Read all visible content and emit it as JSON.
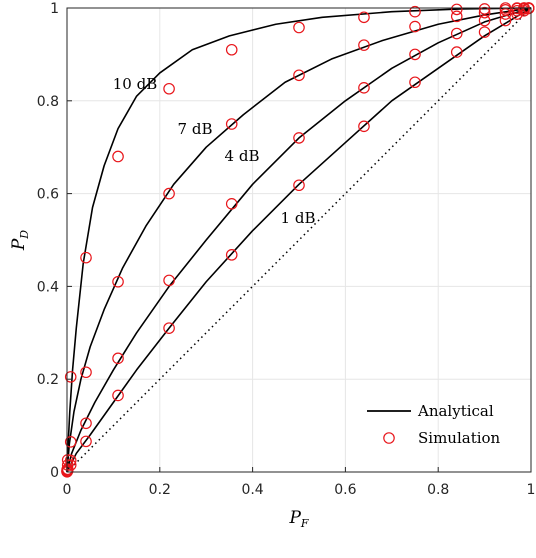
{
  "chart_data": {
    "type": "line",
    "title": "",
    "xlabel": "P",
    "xlabel_sub": "F",
    "ylabel": "P",
    "ylabel_sub": "D",
    "xlim": [
      0,
      1
    ],
    "ylim": [
      0,
      1
    ],
    "xticks": [
      "0",
      "0.2",
      "0.4",
      "0.6",
      "0.8",
      "1"
    ],
    "yticks": [
      "0",
      "0.2",
      "0.4",
      "0.6",
      "0.8",
      "1"
    ],
    "grid": true,
    "legend_position": "bottom-right",
    "legend": [
      "Analytical",
      "Simulation"
    ],
    "colors": {
      "analytical": "#000000",
      "simulation": "#e8161b",
      "reference": "#000000"
    },
    "series": [
      {
        "annotation": "10 dB",
        "analytical": [
          [
            0,
            0
          ],
          [
            0.002,
            0.05
          ],
          [
            0.006,
            0.13
          ],
          [
            0.012,
            0.22
          ],
          [
            0.02,
            0.31
          ],
          [
            0.035,
            0.45
          ],
          [
            0.055,
            0.57
          ],
          [
            0.08,
            0.66
          ],
          [
            0.11,
            0.74
          ],
          [
            0.15,
            0.81
          ],
          [
            0.2,
            0.86
          ],
          [
            0.27,
            0.91
          ],
          [
            0.35,
            0.94
          ],
          [
            0.45,
            0.965
          ],
          [
            0.55,
            0.98
          ],
          [
            0.7,
            0.992
          ],
          [
            0.85,
            0.998
          ],
          [
            1,
            1
          ]
        ],
        "simulation": [
          [
            0.0002,
            0.005
          ],
          [
            0.0015,
            0.026
          ],
          [
            0.008,
            0.205
          ],
          [
            0.041,
            0.462
          ],
          [
            0.11,
            0.68
          ],
          [
            0.22,
            0.826
          ],
          [
            0.355,
            0.91
          ],
          [
            0.5,
            0.958
          ],
          [
            0.64,
            0.98
          ],
          [
            0.75,
            0.992
          ],
          [
            0.84,
            0.997
          ],
          [
            0.9,
            0.998
          ],
          [
            0.945,
            1
          ],
          [
            0.97,
            1
          ],
          [
            0.985,
            1
          ],
          [
            0.995,
            1
          ]
        ]
      },
      {
        "annotation": "7 dB",
        "analytical": [
          [
            0,
            0
          ],
          [
            0.005,
            0.06
          ],
          [
            0.015,
            0.13
          ],
          [
            0.03,
            0.2
          ],
          [
            0.05,
            0.27
          ],
          [
            0.08,
            0.35
          ],
          [
            0.12,
            0.44
          ],
          [
            0.17,
            0.53
          ],
          [
            0.23,
            0.62
          ],
          [
            0.3,
            0.7
          ],
          [
            0.38,
            0.77
          ],
          [
            0.47,
            0.84
          ],
          [
            0.57,
            0.89
          ],
          [
            0.68,
            0.93
          ],
          [
            0.8,
            0.965
          ],
          [
            0.9,
            0.985
          ],
          [
            1,
            1
          ]
        ],
        "simulation": [
          [
            0.0002,
            0.002
          ],
          [
            0.0015,
            0.015
          ],
          [
            0.008,
            0.065
          ],
          [
            0.041,
            0.215
          ],
          [
            0.11,
            0.41
          ],
          [
            0.22,
            0.6
          ],
          [
            0.355,
            0.75
          ],
          [
            0.5,
            0.855
          ],
          [
            0.64,
            0.92
          ],
          [
            0.75,
            0.96
          ],
          [
            0.84,
            0.982
          ],
          [
            0.9,
            0.99
          ],
          [
            0.945,
            0.996
          ],
          [
            0.97,
            0.999
          ],
          [
            0.985,
            1
          ],
          [
            0.995,
            1
          ]
        ]
      },
      {
        "annotation": "4 dB",
        "analytical": [
          [
            0,
            0
          ],
          [
            0.01,
            0.04
          ],
          [
            0.03,
            0.09
          ],
          [
            0.06,
            0.15
          ],
          [
            0.1,
            0.22
          ],
          [
            0.15,
            0.3
          ],
          [
            0.22,
            0.4
          ],
          [
            0.3,
            0.5
          ],
          [
            0.4,
            0.62
          ],
          [
            0.5,
            0.72
          ],
          [
            0.6,
            0.8
          ],
          [
            0.7,
            0.87
          ],
          [
            0.8,
            0.925
          ],
          [
            0.9,
            0.97
          ],
          [
            1,
            1
          ]
        ],
        "simulation": [
          [
            0.0002,
            0.001
          ],
          [
            0.0015,
            0.006
          ],
          [
            0.008,
            0.025
          ],
          [
            0.041,
            0.105
          ],
          [
            0.11,
            0.245
          ],
          [
            0.22,
            0.413
          ],
          [
            0.355,
            0.578
          ],
          [
            0.5,
            0.72
          ],
          [
            0.64,
            0.828
          ],
          [
            0.75,
            0.9
          ],
          [
            0.84,
            0.945
          ],
          [
            0.9,
            0.973
          ],
          [
            0.945,
            0.987
          ],
          [
            0.97,
            0.994
          ],
          [
            0.985,
            0.998
          ],
          [
            0.995,
            1
          ]
        ]
      },
      {
        "annotation": "1 dB",
        "analytical": [
          [
            0,
            0
          ],
          [
            0.02,
            0.04
          ],
          [
            0.05,
            0.08
          ],
          [
            0.1,
            0.15
          ],
          [
            0.15,
            0.22
          ],
          [
            0.22,
            0.31
          ],
          [
            0.3,
            0.41
          ],
          [
            0.4,
            0.52
          ],
          [
            0.5,
            0.62
          ],
          [
            0.6,
            0.71
          ],
          [
            0.7,
            0.8
          ],
          [
            0.8,
            0.87
          ],
          [
            0.9,
            0.94
          ],
          [
            1,
            1
          ]
        ],
        "simulation": [
          [
            0.0002,
            0.0005
          ],
          [
            0.0015,
            0.003
          ],
          [
            0.008,
            0.015
          ],
          [
            0.041,
            0.066
          ],
          [
            0.11,
            0.165
          ],
          [
            0.22,
            0.31
          ],
          [
            0.355,
            0.468
          ],
          [
            0.5,
            0.618
          ],
          [
            0.64,
            0.745
          ],
          [
            0.75,
            0.84
          ],
          [
            0.84,
            0.905
          ],
          [
            0.9,
            0.948
          ],
          [
            0.945,
            0.973
          ],
          [
            0.97,
            0.987
          ],
          [
            0.985,
            0.994
          ],
          [
            0.995,
            0.999
          ]
        ]
      }
    ],
    "reference_line": {
      "style": "dotted",
      "points": [
        [
          0,
          0
        ],
        [
          1,
          1
        ]
      ]
    }
  }
}
